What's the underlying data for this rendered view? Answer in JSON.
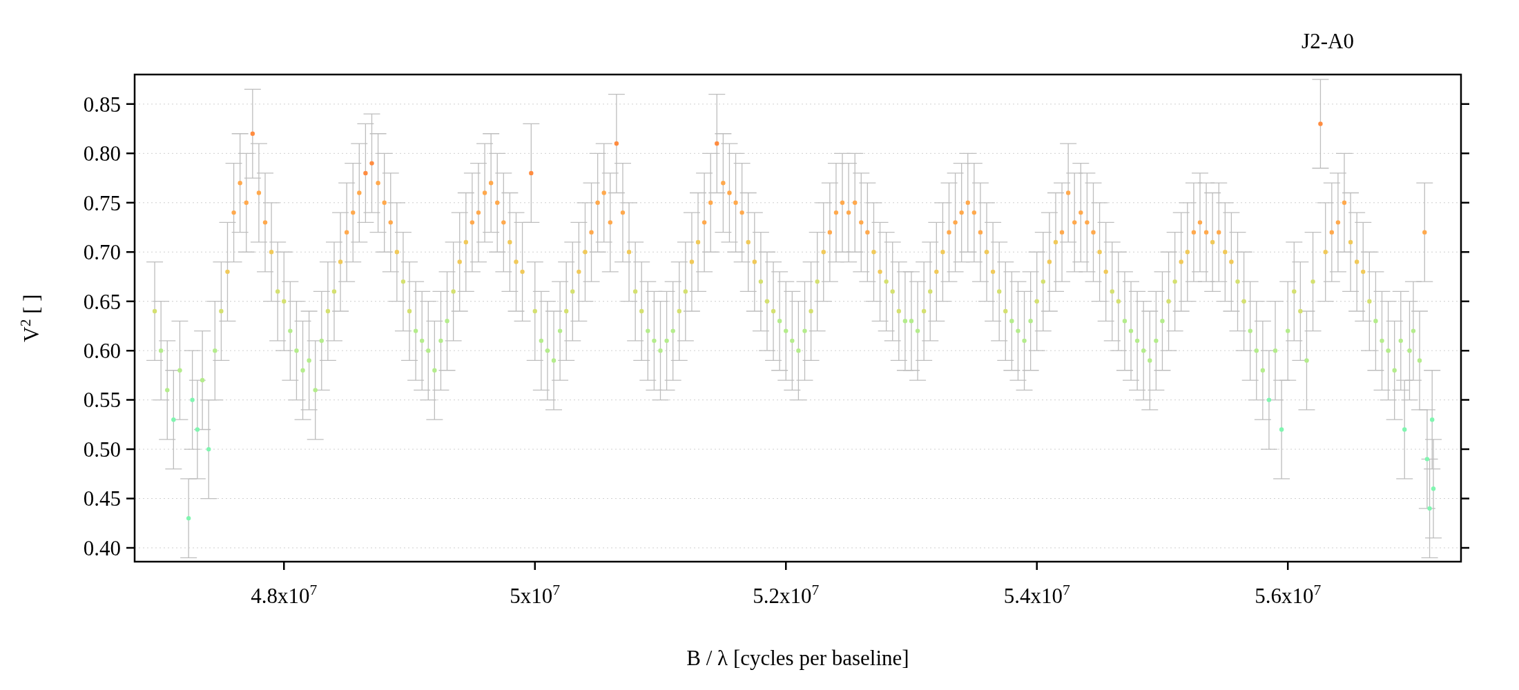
{
  "chart_data": {
    "type": "scatter",
    "title": "J2-A0",
    "xlabel": "B / λ [cycles per baseline]",
    "ylabel": "V$^{2}$ [ ]",
    "xlim": [
      46810000.0,
      57380000.0
    ],
    "ylim": [
      0.386,
      0.88
    ],
    "xticks": [
      {
        "value": 48000000.0,
        "label": "4.8x10$^{7}$"
      },
      {
        "value": 50000000.0,
        "label": "5x10$^{7}$"
      },
      {
        "value": 52000000.0,
        "label": "5.2x10$^{7}$"
      },
      {
        "value": 54000000.0,
        "label": "5.4x10$^{7}$"
      },
      {
        "value": 56000000.0,
        "label": "5.6x10$^{7}$"
      }
    ],
    "yticks": [
      {
        "value": 0.4,
        "label": "0.40"
      },
      0.45,
      {
        "value": 0.5,
        "label": "0.50"
      },
      0.55,
      {
        "value": 0.6,
        "label": "0.60"
      },
      0.65,
      {
        "value": 0.7,
        "label": "0.70"
      },
      0.75,
      {
        "value": 0.8,
        "label": "0.80"
      },
      0.85
    ],
    "grid": "y",
    "series": [
      {
        "color": "#bdbdbd",
        "x": [
          46970000.0,
          47020000.0,
          47070000.0,
          47120000.0,
          47170000.0,
          47240000.0,
          47270000.0,
          47310000.0,
          47350000.0,
          47400000.0,
          47450000.0,
          47500000.0,
          47550000.0,
          47600000.0,
          47650000.0,
          47700000.0,
          47750000.0,
          47800000.0,
          47850000.0,
          47900000.0,
          47950000.0,
          48000000.0,
          48050000.0,
          48100000.0,
          48150000.0,
          48200000.0,
          48250000.0,
          48300000.0,
          48350000.0,
          48400000.0,
          48450000.0,
          48500000.0,
          48550000.0,
          48600000.0,
          48650000.0,
          48700000.0,
          48750000.0,
          48800000.0,
          48850000.0,
          48900000.0,
          48950000.0,
          49000000.0,
          49050000.0,
          49100000.0,
          49150000.0,
          49200000.0,
          49250000.0,
          49300000.0,
          49350000.0,
          49400000.0,
          49450000.0,
          49500000.0,
          49550000.0,
          49600000.0,
          49650000.0,
          49700000.0,
          49750000.0,
          49800000.0,
          49850000.0,
          49900000.0,
          49970000.0,
          50000000.0,
          50050000.0,
          50100000.0,
          50150000.0,
          50200000.0,
          50250000.0,
          50300000.0,
          50350000.0,
          50400000.0,
          50450000.0,
          50500000.0,
          50550000.0,
          50600000.0,
          50650000.0,
          50700000.0,
          50750000.0,
          50800000.0,
          50850000.0,
          50900000.0,
          50950000.0,
          51000000.0,
          51050000.0,
          51100000.0,
          51150000.0,
          51200000.0,
          51250000.0,
          51300000.0,
          51350000.0,
          51400000.0,
          51450000.0,
          51500000.0,
          51550000.0,
          51600000.0,
          51650000.0,
          51700000.0,
          51750000.0,
          51800000.0,
          51850000.0,
          51900000.0,
          51950000.0,
          52000000.0,
          52050000.0,
          52100000.0,
          52150000.0,
          52200000.0,
          52250000.0,
          52300000.0,
          52350000.0,
          52400000.0,
          52450000.0,
          52500000.0,
          52550000.0,
          52600000.0,
          52650000.0,
          52700000.0,
          52750000.0,
          52800000.0,
          52850000.0,
          52900000.0,
          52950000.0,
          53000000.0,
          53050000.0,
          53100000.0,
          53150000.0,
          53200000.0,
          53250000.0,
          53300000.0,
          53350000.0,
          53400000.0,
          53450000.0,
          53500000.0,
          53550000.0,
          53600000.0,
          53650000.0,
          53700000.0,
          53750000.0,
          53800000.0,
          53850000.0,
          53900000.0,
          53950000.0,
          54000000.0,
          54050000.0,
          54100000.0,
          54150000.0,
          54200000.0,
          54250000.0,
          54300000.0,
          54350000.0,
          54400000.0,
          54450000.0,
          54500000.0,
          54550000.0,
          54600000.0,
          54650000.0,
          54700000.0,
          54750000.0,
          54800000.0,
          54850000.0,
          54900000.0,
          54950000.0,
          55000000.0,
          55050000.0,
          55100000.0,
          55150000.0,
          55200000.0,
          55250000.0,
          55300000.0,
          55350000.0,
          55400000.0,
          55450000.0,
          55500000.0,
          55550000.0,
          55600000.0,
          55650000.0,
          55700000.0,
          55750000.0,
          55800000.0,
          55850000.0,
          55900000.0,
          55950000.0,
          56000000.0,
          56050000.0,
          56100000.0,
          56150000.0,
          56200000.0,
          56260000.0,
          56300000.0,
          56350000.0,
          56400000.0,
          56450000.0,
          56500000.0,
          56550000.0,
          56600000.0,
          56650000.0,
          56700000.0,
          56750000.0,
          56800000.0,
          56850000.0,
          56900000.0,
          56930000.0,
          56970000.0,
          57000000.0,
          57050000.0,
          57090000.0,
          57110000.0,
          57130000.0,
          57150000.0,
          57160000.0
        ],
        "values": [
          0.64,
          0.6,
          0.56,
          0.53,
          0.58,
          0.43,
          0.55,
          0.52,
          0.57,
          0.5,
          0.6,
          0.64,
          0.68,
          0.74,
          0.77,
          0.75,
          0.82,
          0.76,
          0.73,
          0.7,
          0.66,
          0.65,
          0.62,
          0.6,
          0.58,
          0.59,
          0.56,
          0.61,
          0.64,
          0.66,
          0.69,
          0.72,
          0.74,
          0.76,
          0.78,
          0.79,
          0.77,
          0.75,
          0.73,
          0.7,
          0.67,
          0.64,
          0.62,
          0.61,
          0.6,
          0.58,
          0.61,
          0.63,
          0.66,
          0.69,
          0.71,
          0.73,
          0.74,
          0.76,
          0.77,
          0.75,
          0.73,
          0.71,
          0.69,
          0.68,
          0.78,
          0.64,
          0.61,
          0.6,
          0.59,
          0.62,
          0.64,
          0.66,
          0.68,
          0.7,
          0.72,
          0.75,
          0.76,
          0.73,
          0.81,
          0.74,
          0.7,
          0.66,
          0.64,
          0.62,
          0.61,
          0.6,
          0.61,
          0.62,
          0.64,
          0.66,
          0.69,
          0.71,
          0.73,
          0.75,
          0.81,
          0.77,
          0.76,
          0.75,
          0.74,
          0.71,
          0.69,
          0.67,
          0.65,
          0.64,
          0.63,
          0.62,
          0.61,
          0.6,
          0.62,
          0.64,
          0.67,
          0.7,
          0.72,
          0.74,
          0.75,
          0.74,
          0.75,
          0.73,
          0.72,
          0.7,
          0.68,
          0.67,
          0.66,
          0.64,
          0.63,
          0.63,
          0.62,
          0.64,
          0.66,
          0.68,
          0.7,
          0.72,
          0.73,
          0.74,
          0.75,
          0.74,
          0.72,
          0.7,
          0.68,
          0.66,
          0.64,
          0.63,
          0.62,
          0.61,
          0.63,
          0.65,
          0.67,
          0.69,
          0.71,
          0.72,
          0.76,
          0.73,
          0.74,
          0.73,
          0.72,
          0.7,
          0.68,
          0.66,
          0.65,
          0.63,
          0.62,
          0.61,
          0.6,
          0.59,
          0.61,
          0.63,
          0.65,
          0.67,
          0.69,
          0.7,
          0.72,
          0.73,
          0.72,
          0.71,
          0.72,
          0.7,
          0.69,
          0.67,
          0.65,
          0.62,
          0.6,
          0.58,
          0.55,
          0.6,
          0.52,
          0.62,
          0.66,
          0.64,
          0.59,
          0.67,
          0.83,
          0.7,
          0.72,
          0.73,
          0.75,
          0.71,
          0.69,
          0.68,
          0.65,
          0.63,
          0.61,
          0.6,
          0.58,
          0.61,
          0.52,
          0.6,
          0.62,
          0.59,
          0.72,
          0.49,
          0.44,
          0.53,
          0.46
        ],
        "errors": [
          0.05,
          0.05,
          0.05,
          0.05,
          0.05,
          0.04,
          0.05,
          0.05,
          0.05,
          0.05,
          0.05,
          0.05,
          0.05,
          0.05,
          0.05,
          0.05,
          0.045,
          0.05,
          0.05,
          0.05,
          0.05,
          0.05,
          0.05,
          0.05,
          0.05,
          0.05,
          0.05,
          0.05,
          0.05,
          0.05,
          0.05,
          0.05,
          0.05,
          0.05,
          0.05,
          0.05,
          0.05,
          0.05,
          0.05,
          0.05,
          0.05,
          0.05,
          0.05,
          0.05,
          0.05,
          0.05,
          0.05,
          0.05,
          0.05,
          0.05,
          0.05,
          0.05,
          0.05,
          0.05,
          0.05,
          0.05,
          0.05,
          0.05,
          0.05,
          0.05,
          0.05,
          0.05,
          0.05,
          0.05,
          0.05,
          0.05,
          0.05,
          0.05,
          0.05,
          0.05,
          0.05,
          0.05,
          0.05,
          0.05,
          0.05,
          0.05,
          0.05,
          0.05,
          0.05,
          0.05,
          0.05,
          0.05,
          0.05,
          0.05,
          0.05,
          0.05,
          0.05,
          0.05,
          0.05,
          0.05,
          0.05,
          0.05,
          0.05,
          0.05,
          0.05,
          0.05,
          0.05,
          0.05,
          0.05,
          0.05,
          0.05,
          0.05,
          0.05,
          0.05,
          0.05,
          0.05,
          0.05,
          0.05,
          0.05,
          0.05,
          0.05,
          0.05,
          0.05,
          0.05,
          0.05,
          0.05,
          0.05,
          0.05,
          0.05,
          0.05,
          0.05,
          0.05,
          0.05,
          0.05,
          0.05,
          0.05,
          0.05,
          0.05,
          0.05,
          0.05,
          0.05,
          0.05,
          0.05,
          0.05,
          0.05,
          0.05,
          0.05,
          0.05,
          0.05,
          0.05,
          0.05,
          0.05,
          0.05,
          0.05,
          0.05,
          0.05,
          0.05,
          0.05,
          0.05,
          0.05,
          0.05,
          0.05,
          0.05,
          0.05,
          0.05,
          0.05,
          0.05,
          0.05,
          0.05,
          0.05,
          0.05,
          0.05,
          0.05,
          0.05,
          0.05,
          0.05,
          0.05,
          0.05,
          0.05,
          0.05,
          0.05,
          0.05,
          0.05,
          0.05,
          0.05,
          0.05,
          0.05,
          0.05,
          0.05,
          0.05,
          0.05,
          0.05,
          0.05,
          0.05,
          0.05,
          0.05,
          0.045,
          0.05,
          0.05,
          0.05,
          0.05,
          0.05,
          0.05,
          0.05,
          0.05,
          0.05,
          0.05,
          0.05,
          0.05,
          0.05,
          0.05,
          0.05,
          0.05,
          0.05,
          0.05,
          0.05,
          0.05,
          0.05,
          0.05
        ],
        "colors": [
          "#d4e070",
          "#b4ec8c",
          "#b4ec8c",
          "#80f5b0",
          "#b4ec8c",
          "#80f5b0",
          "#80f5b0",
          "#80f5b0",
          "#b4ec8c",
          "#80f5b0",
          "#b4ec8c",
          "#d4e070",
          "#f0c95a",
          "#ffa94d",
          "#ffa94d",
          "#ffa94d",
          "#ff8c40",
          "#ffa94d",
          "#ffa94d",
          "#f0c95a",
          "#d4e070",
          "#d4e070",
          "#b4ec8c",
          "#b4ec8c",
          "#b4ec8c",
          "#b4ec8c",
          "#b4ec8c",
          "#b4ec8c",
          "#d4e070",
          "#d4e070",
          "#f0c95a",
          "#ffa94d",
          "#ffa94d",
          "#ffa94d",
          "#ff8c40",
          "#ff8c40",
          "#ffa94d",
          "#ffa94d",
          "#ffa94d",
          "#f0c95a",
          "#d4e070",
          "#d4e070",
          "#b4ec8c",
          "#b4ec8c",
          "#b4ec8c",
          "#b4ec8c",
          "#b4ec8c",
          "#b4ec8c",
          "#d4e070",
          "#f0c95a",
          "#f0c95a",
          "#ffa94d",
          "#ffa94d",
          "#ffa94d",
          "#ffa94d",
          "#ffa94d",
          "#ffa94d",
          "#f0c95a",
          "#f0c95a",
          "#f0c95a",
          "#ff8c40",
          "#d4e070",
          "#b4ec8c",
          "#b4ec8c",
          "#b4ec8c",
          "#b4ec8c",
          "#d4e070",
          "#d4e070",
          "#f0c95a",
          "#f0c95a",
          "#ffa94d",
          "#ffa94d",
          "#ffa94d",
          "#ffa94d",
          "#ff8c40",
          "#ffa94d",
          "#f0c95a",
          "#d4e070",
          "#d4e070",
          "#b4ec8c",
          "#b4ec8c",
          "#b4ec8c",
          "#b4ec8c",
          "#b4ec8c",
          "#d4e070",
          "#d4e070",
          "#f0c95a",
          "#f0c95a",
          "#ffa94d",
          "#ffa94d",
          "#ff8c40",
          "#ffa94d",
          "#ffa94d",
          "#ffa94d",
          "#ffa94d",
          "#f0c95a",
          "#f0c95a",
          "#d4e070",
          "#d4e070",
          "#d4e070",
          "#b4ec8c",
          "#b4ec8c",
          "#b4ec8c",
          "#b4ec8c",
          "#b4ec8c",
          "#d4e070",
          "#d4e070",
          "#f0c95a",
          "#ffa94d",
          "#ffa94d",
          "#ffa94d",
          "#ffa94d",
          "#ffa94d",
          "#ffa94d",
          "#ffa94d",
          "#f0c95a",
          "#f0c95a",
          "#d4e070",
          "#d4e070",
          "#d4e070",
          "#b4ec8c",
          "#b4ec8c",
          "#b4ec8c",
          "#d4e070",
          "#d4e070",
          "#f0c95a",
          "#f0c95a",
          "#ffa94d",
          "#ffa94d",
          "#ffa94d",
          "#ffa94d",
          "#ffa94d",
          "#ffa94d",
          "#f0c95a",
          "#f0c95a",
          "#d4e070",
          "#d4e070",
          "#b4ec8c",
          "#b4ec8c",
          "#b4ec8c",
          "#b4ec8c",
          "#d4e070",
          "#d4e070",
          "#f0c95a",
          "#f0c95a",
          "#ffa94d",
          "#ffa94d",
          "#ffa94d",
          "#ffa94d",
          "#ffa94d",
          "#ffa94d",
          "#f0c95a",
          "#f0c95a",
          "#d4e070",
          "#d4e070",
          "#b4ec8c",
          "#b4ec8c",
          "#b4ec8c",
          "#b4ec8c",
          "#b4ec8c",
          "#b4ec8c",
          "#b4ec8c",
          "#d4e070",
          "#d4e070",
          "#f0c95a",
          "#f0c95a",
          "#ffa94d",
          "#ffa94d",
          "#ffa94d",
          "#f0c95a",
          "#ffa94d",
          "#f0c95a",
          "#f0c95a",
          "#d4e070",
          "#d4e070",
          "#b4ec8c",
          "#b4ec8c",
          "#b4ec8c",
          "#80f5b0",
          "#b4ec8c",
          "#80f5b0",
          "#b4ec8c",
          "#d4e070",
          "#d4e070",
          "#b4ec8c",
          "#d4e070",
          "#ff8c40",
          "#f0c95a",
          "#ffa94d",
          "#ffa94d",
          "#ffa94d",
          "#f0c95a",
          "#f0c95a",
          "#f0c95a",
          "#d4e070",
          "#b4ec8c",
          "#b4ec8c",
          "#b4ec8c",
          "#b4ec8c",
          "#b4ec8c",
          "#80f5b0",
          "#b4ec8c",
          "#b4ec8c",
          "#b4ec8c",
          "#ffa94d",
          "#80f5b0",
          "#80f5b0",
          "#80f5b0",
          "#80f5b0"
        ]
      }
    ]
  }
}
